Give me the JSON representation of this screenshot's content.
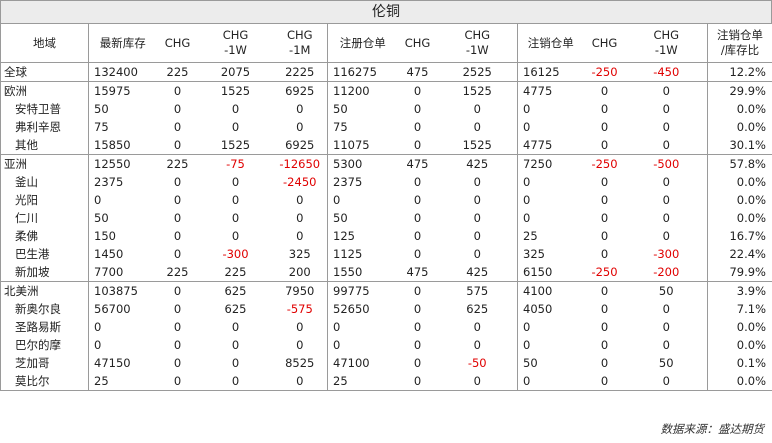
{
  "title": "伦铜",
  "headers": {
    "region": "地域",
    "latest_stock": "最新库存",
    "chg": "CHG",
    "chg_1w_a": "CHG",
    "chg_1w_b": "-1W",
    "chg_1m_a": "CHG",
    "chg_1m_b": "-1M",
    "registered": "注册仓单",
    "reg_chg": "CHG",
    "reg_chg_1w_a": "CHG",
    "reg_chg_1w_b": "-1W",
    "cancelled": "注销仓单",
    "can_chg": "CHG",
    "can_chg_1w_a": "CHG",
    "can_chg_1w_b": "-1W",
    "ratio_a": "注销仓单",
    "ratio_b": "/库存比"
  },
  "rows": [
    {
      "region": "全球",
      "stock": "132400",
      "chg": "225",
      "chg1w": "2075",
      "chg1m": "2225",
      "reg": "116275",
      "regchg": "475",
      "regchg1w": "2525",
      "can": "16125",
      "canchg": "-250",
      "canchg1w": "-450",
      "ratio": "12.2%"
    },
    {
      "region": "欧洲",
      "stock": "15975",
      "chg": "0",
      "chg1w": "1525",
      "chg1m": "6925",
      "reg": "11200",
      "regchg": "0",
      "regchg1w": "1525",
      "can": "4775",
      "canchg": "0",
      "canchg1w": "0",
      "ratio": "29.9%"
    },
    {
      "region": "安特卫普",
      "stock": "50",
      "chg": "0",
      "chg1w": "0",
      "chg1m": "0",
      "reg": "50",
      "regchg": "0",
      "regchg1w": "0",
      "can": "0",
      "canchg": "0",
      "canchg1w": "0",
      "ratio": "0.0%"
    },
    {
      "region": "弗利辛恩",
      "stock": "75",
      "chg": "0",
      "chg1w": "0",
      "chg1m": "0",
      "reg": "75",
      "regchg": "0",
      "regchg1w": "0",
      "can": "0",
      "canchg": "0",
      "canchg1w": "0",
      "ratio": "0.0%"
    },
    {
      "region": "其他",
      "stock": "15850",
      "chg": "0",
      "chg1w": "1525",
      "chg1m": "6925",
      "reg": "11075",
      "regchg": "0",
      "regchg1w": "1525",
      "can": "4775",
      "canchg": "0",
      "canchg1w": "0",
      "ratio": "30.1%"
    },
    {
      "region": "亚洲",
      "stock": "12550",
      "chg": "225",
      "chg1w": "-75",
      "chg1m": "-12650",
      "reg": "5300",
      "regchg": "475",
      "regchg1w": "425",
      "can": "7250",
      "canchg": "-250",
      "canchg1w": "-500",
      "ratio": "57.8%"
    },
    {
      "region": "釜山",
      "stock": "2375",
      "chg": "0",
      "chg1w": "0",
      "chg1m": "-2450",
      "reg": "2375",
      "regchg": "0",
      "regchg1w": "0",
      "can": "0",
      "canchg": "0",
      "canchg1w": "0",
      "ratio": "0.0%"
    },
    {
      "region": "光阳",
      "stock": "0",
      "chg": "0",
      "chg1w": "0",
      "chg1m": "0",
      "reg": "0",
      "regchg": "0",
      "regchg1w": "0",
      "can": "0",
      "canchg": "0",
      "canchg1w": "0",
      "ratio": "0.0%"
    },
    {
      "region": "仁川",
      "stock": "50",
      "chg": "0",
      "chg1w": "0",
      "chg1m": "0",
      "reg": "50",
      "regchg": "0",
      "regchg1w": "0",
      "can": "0",
      "canchg": "0",
      "canchg1w": "0",
      "ratio": "0.0%"
    },
    {
      "region": "柔佛",
      "stock": "150",
      "chg": "0",
      "chg1w": "0",
      "chg1m": "0",
      "reg": "125",
      "regchg": "0",
      "regchg1w": "0",
      "can": "25",
      "canchg": "0",
      "canchg1w": "0",
      "ratio": "16.7%"
    },
    {
      "region": "巴生港",
      "stock": "1450",
      "chg": "0",
      "chg1w": "-300",
      "chg1m": "325",
      "reg": "1125",
      "regchg": "0",
      "regchg1w": "0",
      "can": "325",
      "canchg": "0",
      "canchg1w": "-300",
      "ratio": "22.4%"
    },
    {
      "region": "新加坡",
      "stock": "7700",
      "chg": "225",
      "chg1w": "225",
      "chg1m": "200",
      "reg": "1550",
      "regchg": "475",
      "regchg1w": "425",
      "can": "6150",
      "canchg": "-250",
      "canchg1w": "-200",
      "ratio": "79.9%"
    },
    {
      "region": "北美洲",
      "stock": "103875",
      "chg": "0",
      "chg1w": "625",
      "chg1m": "7950",
      "reg": "99775",
      "regchg": "0",
      "regchg1w": "575",
      "can": "4100",
      "canchg": "0",
      "canchg1w": "50",
      "ratio": "3.9%"
    },
    {
      "region": "新奥尔良",
      "stock": "56700",
      "chg": "0",
      "chg1w": "625",
      "chg1m": "-575",
      "reg": "52650",
      "regchg": "0",
      "regchg1w": "625",
      "can": "4050",
      "canchg": "0",
      "canchg1w": "0",
      "ratio": "7.1%"
    },
    {
      "region": "圣路易斯",
      "stock": "0",
      "chg": "0",
      "chg1w": "0",
      "chg1m": "0",
      "reg": "0",
      "regchg": "0",
      "regchg1w": "0",
      "can": "0",
      "canchg": "0",
      "canchg1w": "0",
      "ratio": "0.0%"
    },
    {
      "region": "巴尔的摩",
      "stock": "0",
      "chg": "0",
      "chg1w": "0",
      "chg1m": "0",
      "reg": "0",
      "regchg": "0",
      "regchg1w": "0",
      "can": "0",
      "canchg": "0",
      "canchg1w": "0",
      "ratio": "0.0%"
    },
    {
      "region": "芝加哥",
      "stock": "47150",
      "chg": "0",
      "chg1w": "0",
      "chg1m": "8525",
      "reg": "47100",
      "regchg": "0",
      "regchg1w": "-50",
      "can": "50",
      "canchg": "0",
      "canchg1w": "50",
      "ratio": "0.1%"
    },
    {
      "region": "莫比尔",
      "stock": "25",
      "chg": "0",
      "chg1w": "0",
      "chg1m": "0",
      "reg": "25",
      "regchg": "0",
      "regchg1w": "0",
      "can": "0",
      "canchg": "0",
      "canchg1w": "0",
      "ratio": "0.0%"
    }
  ],
  "source": "数据来源：盛达期货",
  "colors": {
    "negative": "#e00000",
    "border": "#9a9a9a",
    "title_bg": "#ececec"
  }
}
